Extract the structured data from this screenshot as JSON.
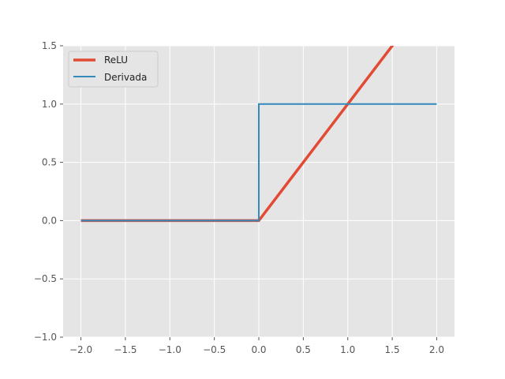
{
  "chart_data": {
    "type": "line",
    "title": "",
    "xlabel": "",
    "ylabel": "",
    "xlim": [
      -2.2,
      2.2
    ],
    "ylim": [
      -1.0,
      1.5
    ],
    "grid": true,
    "legend_position": "top-left",
    "x_ticks": [
      -2.0,
      -1.5,
      -1.0,
      -0.5,
      0.0,
      0.5,
      1.0,
      1.5,
      2.0
    ],
    "y_ticks": [
      -1.0,
      -0.5,
      0.0,
      0.5,
      1.0,
      1.5
    ],
    "x_tick_labels": [
      "−2.0",
      "−1.5",
      "−1.0",
      "−0.5",
      "0.0",
      "0.5",
      "1.0",
      "1.5",
      "2.0"
    ],
    "y_tick_labels": [
      "−1.0",
      "−0.5",
      "0.0",
      "0.5",
      "1.0",
      "1.5"
    ],
    "series": [
      {
        "name": "ReLU",
        "color": "#E24A33",
        "x": [
          -2.0,
          0.0,
          2.0
        ],
        "y": [
          0.0,
          0.0,
          2.0
        ]
      },
      {
        "name": "Derivada",
        "color": "#348ABD",
        "x": [
          -2.0,
          0.0,
          0.0,
          2.0
        ],
        "y": [
          0.0,
          0.0,
          1.0,
          1.0
        ]
      }
    ]
  }
}
